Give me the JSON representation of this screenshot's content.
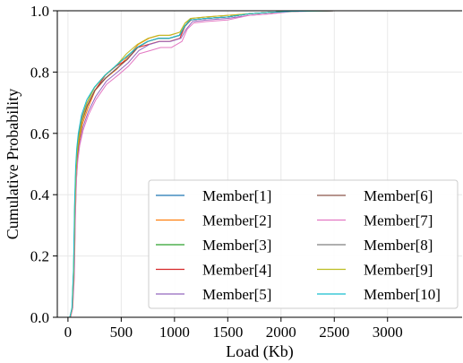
{
  "chart_data": {
    "type": "line",
    "xlabel": "Load (Kb)",
    "ylabel": "Cumulative Probability",
    "xlim": [
      -100,
      3700
    ],
    "ylim": [
      0.0,
      1.0
    ],
    "xticks": [
      0,
      500,
      1000,
      1500,
      2000,
      2500,
      3000
    ],
    "xtick_labels": [
      "0",
      "500",
      "1000",
      "1500",
      "2000",
      "2500",
      "3000"
    ],
    "yticks": [
      0.0,
      0.2,
      0.4,
      0.6,
      0.8,
      1.0
    ],
    "ytick_labels": [
      "0.0",
      "0.2",
      "0.4",
      "0.6",
      "0.8",
      "1.0"
    ],
    "grid": true,
    "legend": {
      "placement": "lower-right",
      "columns": 2
    },
    "series": [
      {
        "name": "Member[1]",
        "color": "#1f77b4",
        "x": [
          20,
          40,
          55,
          65,
          75,
          85,
          100,
          130,
          180,
          250,
          350,
          450,
          550,
          650,
          750,
          850,
          950,
          1050,
          1100,
          1150,
          1300,
          1500,
          1700,
          1900,
          2100,
          2500,
          3000,
          3700
        ],
        "y": [
          0.0,
          0.03,
          0.15,
          0.35,
          0.47,
          0.53,
          0.58,
          0.64,
          0.69,
          0.74,
          0.78,
          0.81,
          0.84,
          0.88,
          0.9,
          0.91,
          0.91,
          0.92,
          0.95,
          0.97,
          0.975,
          0.98,
          0.99,
          0.995,
          0.998,
          1.0,
          1.0,
          1.0
        ]
      },
      {
        "name": "Member[2]",
        "color": "#ff7f0e",
        "x": [
          22,
          42,
          57,
          67,
          77,
          88,
          105,
          135,
          185,
          255,
          355,
          460,
          560,
          660,
          760,
          860,
          960,
          1050,
          1100,
          1160,
          1300,
          1500,
          1700,
          1900,
          2100,
          2500,
          3000,
          3700
        ],
        "y": [
          0.0,
          0.03,
          0.14,
          0.34,
          0.46,
          0.52,
          0.57,
          0.63,
          0.68,
          0.74,
          0.78,
          0.81,
          0.85,
          0.89,
          0.91,
          0.92,
          0.92,
          0.93,
          0.96,
          0.975,
          0.98,
          0.985,
          0.99,
          0.995,
          0.998,
          1.0,
          1.0,
          1.0
        ]
      },
      {
        "name": "Member[3]",
        "color": "#2ca02c",
        "x": [
          18,
          38,
          53,
          63,
          73,
          83,
          98,
          128,
          178,
          248,
          348,
          448,
          548,
          648,
          748,
          848,
          948,
          1045,
          1095,
          1145,
          1300,
          1500,
          1700,
          1900,
          2100,
          2500,
          3000,
          3700
        ],
        "y": [
          0.0,
          0.03,
          0.16,
          0.36,
          0.48,
          0.54,
          0.59,
          0.65,
          0.7,
          0.75,
          0.79,
          0.82,
          0.85,
          0.88,
          0.9,
          0.91,
          0.91,
          0.92,
          0.95,
          0.97,
          0.975,
          0.98,
          0.99,
          0.995,
          0.998,
          1.0,
          1.0,
          1.0
        ]
      },
      {
        "name": "Member[4]",
        "color": "#d62728",
        "x": [
          20,
          40,
          55,
          66,
          76,
          86,
          102,
          132,
          182,
          252,
          352,
          455,
          555,
          655,
          755,
          855,
          955,
          1050,
          1100,
          1150,
          1300,
          1500,
          1700,
          1900,
          2100,
          2500,
          3000,
          3700
        ],
        "y": [
          0.0,
          0.03,
          0.15,
          0.35,
          0.47,
          0.53,
          0.58,
          0.64,
          0.69,
          0.74,
          0.79,
          0.82,
          0.84,
          0.88,
          0.89,
          0.9,
          0.9,
          0.91,
          0.95,
          0.97,
          0.975,
          0.98,
          0.99,
          0.995,
          0.998,
          1.0,
          1.0,
          1.0
        ]
      },
      {
        "name": "Member[5]",
        "color": "#9467bd",
        "x": [
          24,
          44,
          59,
          69,
          79,
          90,
          108,
          140,
          190,
          260,
          360,
          465,
          565,
          665,
          765,
          865,
          965,
          1060,
          1110,
          1170,
          1300,
          1500,
          1700,
          1900,
          2100,
          2500,
          3000,
          3700
        ],
        "y": [
          0.0,
          0.03,
          0.14,
          0.33,
          0.45,
          0.51,
          0.56,
          0.62,
          0.67,
          0.72,
          0.77,
          0.8,
          0.83,
          0.87,
          0.89,
          0.9,
          0.9,
          0.91,
          0.94,
          0.965,
          0.97,
          0.975,
          0.985,
          0.99,
          0.998,
          1.0,
          1.0,
          1.0
        ]
      },
      {
        "name": "Member[6]",
        "color": "#8c564b",
        "x": [
          21,
          41,
          56,
          66,
          76,
          86,
          103,
          133,
          183,
          253,
          353,
          453,
          553,
          653,
          753,
          853,
          953,
          1050,
          1100,
          1155,
          1300,
          1500,
          1700,
          1900,
          2100,
          2500,
          3000,
          3700
        ],
        "y": [
          0.0,
          0.03,
          0.15,
          0.34,
          0.46,
          0.52,
          0.58,
          0.64,
          0.69,
          0.74,
          0.78,
          0.81,
          0.84,
          0.88,
          0.9,
          0.91,
          0.91,
          0.92,
          0.95,
          0.97,
          0.975,
          0.98,
          0.99,
          0.995,
          0.998,
          1.0,
          1.0,
          1.0
        ]
      },
      {
        "name": "Member[7]",
        "color": "#e377c2",
        "x": [
          25,
          45,
          60,
          70,
          80,
          92,
          110,
          142,
          192,
          262,
          362,
          470,
          570,
          670,
          770,
          870,
          970,
          1070,
          1120,
          1180,
          1300,
          1500,
          1700,
          1900,
          2100,
          2500,
          3000,
          3700
        ],
        "y": [
          0.0,
          0.03,
          0.13,
          0.33,
          0.45,
          0.51,
          0.56,
          0.61,
          0.66,
          0.71,
          0.76,
          0.79,
          0.82,
          0.86,
          0.87,
          0.88,
          0.88,
          0.9,
          0.94,
          0.96,
          0.965,
          0.97,
          0.985,
          0.99,
          0.997,
          1.0,
          1.0,
          1.0
        ]
      },
      {
        "name": "Member[8]",
        "color": "#7f7f7f",
        "x": [
          19,
          39,
          54,
          64,
          74,
          84,
          99,
          129,
          179,
          249,
          349,
          449,
          549,
          649,
          749,
          849,
          949,
          1048,
          1098,
          1148,
          1300,
          1500,
          1700,
          1900,
          2100,
          2500,
          3000,
          3700
        ],
        "y": [
          0.0,
          0.03,
          0.16,
          0.36,
          0.48,
          0.54,
          0.59,
          0.65,
          0.7,
          0.75,
          0.79,
          0.82,
          0.85,
          0.88,
          0.9,
          0.91,
          0.91,
          0.92,
          0.95,
          0.97,
          0.975,
          0.98,
          0.99,
          0.995,
          0.998,
          1.0,
          1.0,
          1.0
        ]
      },
      {
        "name": "Member[9]",
        "color": "#bcbd22",
        "x": [
          20,
          40,
          55,
          65,
          75,
          85,
          100,
          130,
          180,
          250,
          350,
          450,
          550,
          650,
          750,
          850,
          950,
          1050,
          1100,
          1150,
          1300,
          1500,
          1700,
          1900,
          2100,
          2500,
          3000,
          3700
        ],
        "y": [
          0.0,
          0.03,
          0.15,
          0.35,
          0.47,
          0.53,
          0.58,
          0.64,
          0.7,
          0.75,
          0.79,
          0.82,
          0.86,
          0.89,
          0.91,
          0.92,
          0.92,
          0.93,
          0.96,
          0.975,
          0.98,
          0.985,
          0.99,
          0.995,
          0.998,
          1.0,
          1.0,
          1.0
        ]
      },
      {
        "name": "Member[10]",
        "color": "#17becf",
        "x": [
          17,
          37,
          52,
          62,
          72,
          82,
          97,
          127,
          177,
          247,
          347,
          447,
          547,
          647,
          747,
          847,
          947,
          1045,
          1095,
          1145,
          1300,
          1500,
          1700,
          1900,
          2100,
          2500,
          3000,
          3700
        ],
        "y": [
          0.0,
          0.03,
          0.16,
          0.37,
          0.49,
          0.55,
          0.6,
          0.66,
          0.71,
          0.75,
          0.79,
          0.82,
          0.85,
          0.88,
          0.9,
          0.91,
          0.91,
          0.92,
          0.95,
          0.97,
          0.975,
          0.98,
          0.99,
          0.995,
          0.998,
          1.0,
          1.0,
          1.0
        ]
      }
    ]
  }
}
